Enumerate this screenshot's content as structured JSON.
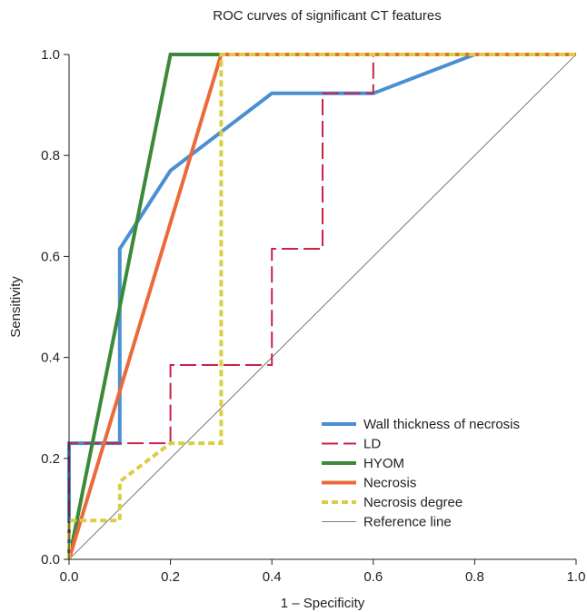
{
  "chart_data": {
    "type": "line",
    "title": "ROC curves of significant CT features",
    "xlabel": "1 – Specificity",
    "ylabel": "Sensitivity",
    "xlim": [
      0,
      1
    ],
    "ylim": [
      0,
      1
    ],
    "xticks": [
      "0.0",
      "0.2",
      "0.4",
      "0.6",
      "0.8",
      "1.0"
    ],
    "yticks": [
      "0.0",
      "0.2",
      "0.4",
      "0.6",
      "0.8",
      "1.0"
    ],
    "grid": false,
    "legend_position": "bottom-right",
    "series": [
      {
        "name": "Wall thickness of necrosis",
        "color": "#4a8fd1",
        "dash": "solid",
        "x": [
          0,
          0,
          0.1,
          0.1,
          0.2,
          0.4,
          0.6,
          0.8,
          1.0
        ],
        "y": [
          0,
          0.23,
          0.23,
          0.615,
          0.77,
          0.923,
          0.923,
          1.0,
          1.0
        ]
      },
      {
        "name": "LD",
        "color": "#c8244a",
        "dash": "long-dash",
        "x": [
          0,
          0,
          0.2,
          0.2,
          0.4,
          0.4,
          0.5,
          0.5,
          0.6,
          0.6,
          1.0
        ],
        "y": [
          0,
          0.23,
          0.23,
          0.385,
          0.385,
          0.615,
          0.615,
          0.923,
          0.923,
          1.0,
          1.0
        ]
      },
      {
        "name": "HYOM",
        "color": "#3a8a3a",
        "dash": "solid",
        "x": [
          0,
          0.2,
          1.0
        ],
        "y": [
          0,
          1.0,
          1.0
        ]
      },
      {
        "name": "Necrosis",
        "color": "#ec6a3a",
        "dash": "solid",
        "x": [
          0,
          0.3,
          1.0
        ],
        "y": [
          0,
          1.0,
          1.0
        ]
      },
      {
        "name": "Necrosis degree",
        "color": "#d9cf45",
        "dash": "short-dash",
        "x": [
          0,
          0,
          0.1,
          0.1,
          0.2,
          0.3,
          0.3,
          1.0
        ],
        "y": [
          0,
          0.077,
          0.077,
          0.154,
          0.23,
          0.23,
          1.0,
          1.0
        ]
      },
      {
        "name": "Reference line",
        "color": "#555555",
        "dash": "thin",
        "x": [
          0,
          1.0
        ],
        "y": [
          0,
          1.0
        ]
      }
    ]
  }
}
